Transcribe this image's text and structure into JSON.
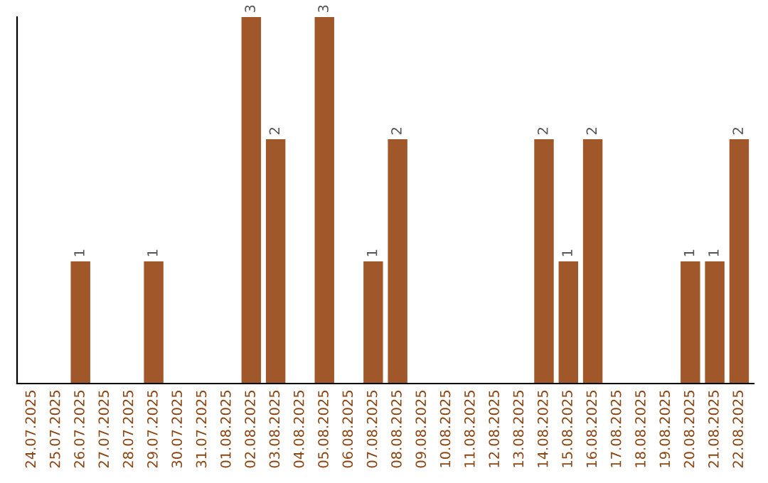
{
  "chart_data": {
    "type": "bar",
    "categories": [
      "24.07.2025",
      "25.07.2025",
      "26.07.2025",
      "27.07.2025",
      "28.07.2025",
      "29.07.2025",
      "30.07.2025",
      "31.07.2025",
      "01.08.2025",
      "02.08.2025",
      "03.08.2025",
      "04.08.2025",
      "05.08.2025",
      "06.08.2025",
      "07.08.2025",
      "08.08.2025",
      "09.08.2025",
      "10.08.2025",
      "11.08.2025",
      "12.08.2025",
      "13.08.2025",
      "14.08.2025",
      "15.08.2025",
      "16.08.2025",
      "17.08.2025",
      "18.08.2025",
      "19.08.2025",
      "20.08.2025",
      "21.08.2025",
      "22.08.2025"
    ],
    "values": [
      0,
      0,
      1,
      0,
      0,
      1,
      0,
      0,
      0,
      3,
      2,
      0,
      3,
      0,
      1,
      2,
      0,
      0,
      0,
      0,
      0,
      2,
      1,
      2,
      0,
      0,
      0,
      1,
      1,
      2
    ],
    "value_labels": [
      null,
      null,
      "1",
      null,
      null,
      "1",
      null,
      null,
      null,
      "3",
      "2",
      null,
      "3",
      null,
      "1",
      "2",
      null,
      null,
      null,
      null,
      null,
      "2",
      "1",
      "2",
      null,
      null,
      null,
      "1",
      "1",
      "2"
    ],
    "color": "#a0582b",
    "tick_labels": "x",
    "grid": false,
    "legend": false
  }
}
